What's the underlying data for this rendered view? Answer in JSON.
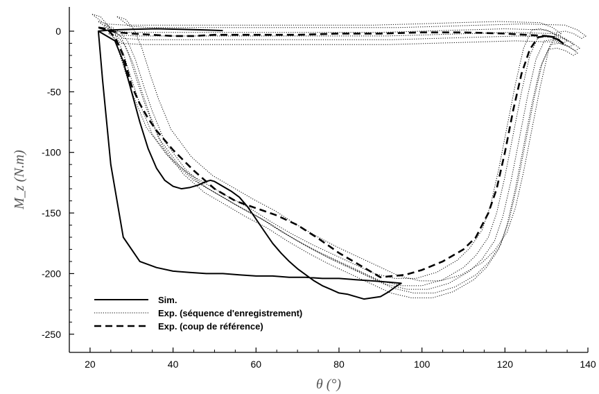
{
  "chart_data": {
    "type": "line",
    "title": "",
    "xlabel": "θ (°)",
    "ylabel": "M_z (N.m)",
    "xlim": [
      15,
      140
    ],
    "ylim": [
      -265,
      20
    ],
    "xticks": [
      20,
      40,
      60,
      80,
      100,
      120,
      140
    ],
    "yticks": [
      0,
      -50,
      -100,
      -150,
      -200,
      -250
    ],
    "grid": false,
    "legend_position": "bottom-left",
    "series": [
      {
        "name": "Sim.",
        "style": "solid",
        "color": "#000000",
        "x": [
          22,
          26,
          28,
          30,
          32,
          34,
          36,
          38,
          40,
          42,
          44,
          46,
          48,
          49,
          50,
          52,
          54,
          56,
          58,
          60,
          62,
          64,
          66,
          68,
          70,
          72,
          74,
          76,
          78,
          80,
          82,
          84,
          86,
          88,
          90,
          92,
          94,
          95,
          92,
          88,
          84,
          80,
          76,
          72,
          68,
          64,
          60,
          56,
          52,
          48,
          44,
          40,
          36,
          32,
          28,
          25,
          23,
          22,
          25,
          30,
          36,
          42,
          48,
          52
        ],
        "y": [
          0,
          -8,
          -25,
          -50,
          -75,
          -97,
          -113,
          -123,
          -128,
          -130,
          -129,
          -127,
          -124,
          -123,
          -124,
          -128,
          -132,
          -137,
          -145,
          -155,
          -165,
          -175,
          -183,
          -190,
          -196,
          -201,
          -206,
          -210,
          -213,
          -216,
          -217,
          -219,
          -221,
          -220,
          -219,
          -215,
          -210,
          -208,
          -207,
          -206,
          -205,
          -204,
          -204,
          -203,
          -203,
          -202,
          -202,
          -201,
          -200,
          -200,
          -199,
          -198,
          -195,
          -190,
          -170,
          -110,
          -40,
          0,
          1,
          1.5,
          2,
          1.5,
          1,
          0.5
        ]
      },
      {
        "name": "Exp. (séquence d'enregistrement)",
        "style": "dotted",
        "color": "#000000",
        "x": [
          22,
          24,
          26,
          28,
          30,
          32,
          35,
          40,
          45,
          50,
          55,
          60,
          65,
          70,
          75,
          80,
          85,
          90,
          95,
          100,
          105,
          110,
          113,
          116,
          118,
          120,
          122,
          124,
          126,
          128,
          130,
          132,
          134,
          135,
          133,
          130,
          120,
          110,
          100,
          90,
          80,
          70,
          60,
          50,
          40,
          30,
          25,
          22
        ],
        "y": [
          8,
          6,
          -2,
          -18,
          -40,
          -60,
          -85,
          -108,
          -123,
          -133,
          -143,
          -152,
          -163,
          -173,
          -182,
          -190,
          -198,
          -206,
          -210,
          -210,
          -205,
          -195,
          -185,
          -170,
          -150,
          -120,
          -85,
          -50,
          -20,
          -5,
          -4,
          -6,
          -10,
          -8,
          -3,
          1,
          2,
          1,
          0,
          -1,
          -1,
          -1,
          -1,
          -1,
          -1,
          -1,
          0,
          8
        ]
      },
      {
        "name": "Exp. (coup de référence)",
        "style": "dashed",
        "color": "#000000",
        "x": [
          22,
          24,
          26,
          28,
          30,
          32,
          34,
          36,
          40,
          45,
          50,
          55,
          60,
          65,
          70,
          75,
          80,
          85,
          88,
          90,
          93,
          96,
          100,
          105,
          110,
          113,
          116,
          118,
          120,
          122,
          124,
          126,
          128,
          130,
          132,
          134,
          133,
          130,
          120,
          110,
          100,
          90,
          80,
          70,
          60,
          50,
          45,
          40,
          35,
          30,
          27,
          25,
          22
        ],
        "y": [
          3,
          2,
          -5,
          -20,
          -45,
          -60,
          -72,
          -82,
          -98,
          -115,
          -130,
          -140,
          -146,
          -152,
          -160,
          -171,
          -183,
          -193,
          -199,
          -203,
          -202,
          -201,
          -197,
          -190,
          -180,
          -170,
          -150,
          -130,
          -100,
          -65,
          -35,
          -15,
          -5,
          -4,
          -5,
          -10,
          -7,
          -4,
          -2,
          -1,
          -1,
          -2,
          -2,
          -3,
          -3,
          -3,
          -4,
          -4,
          -3,
          -2,
          -1,
          0,
          3
        ]
      }
    ]
  }
}
